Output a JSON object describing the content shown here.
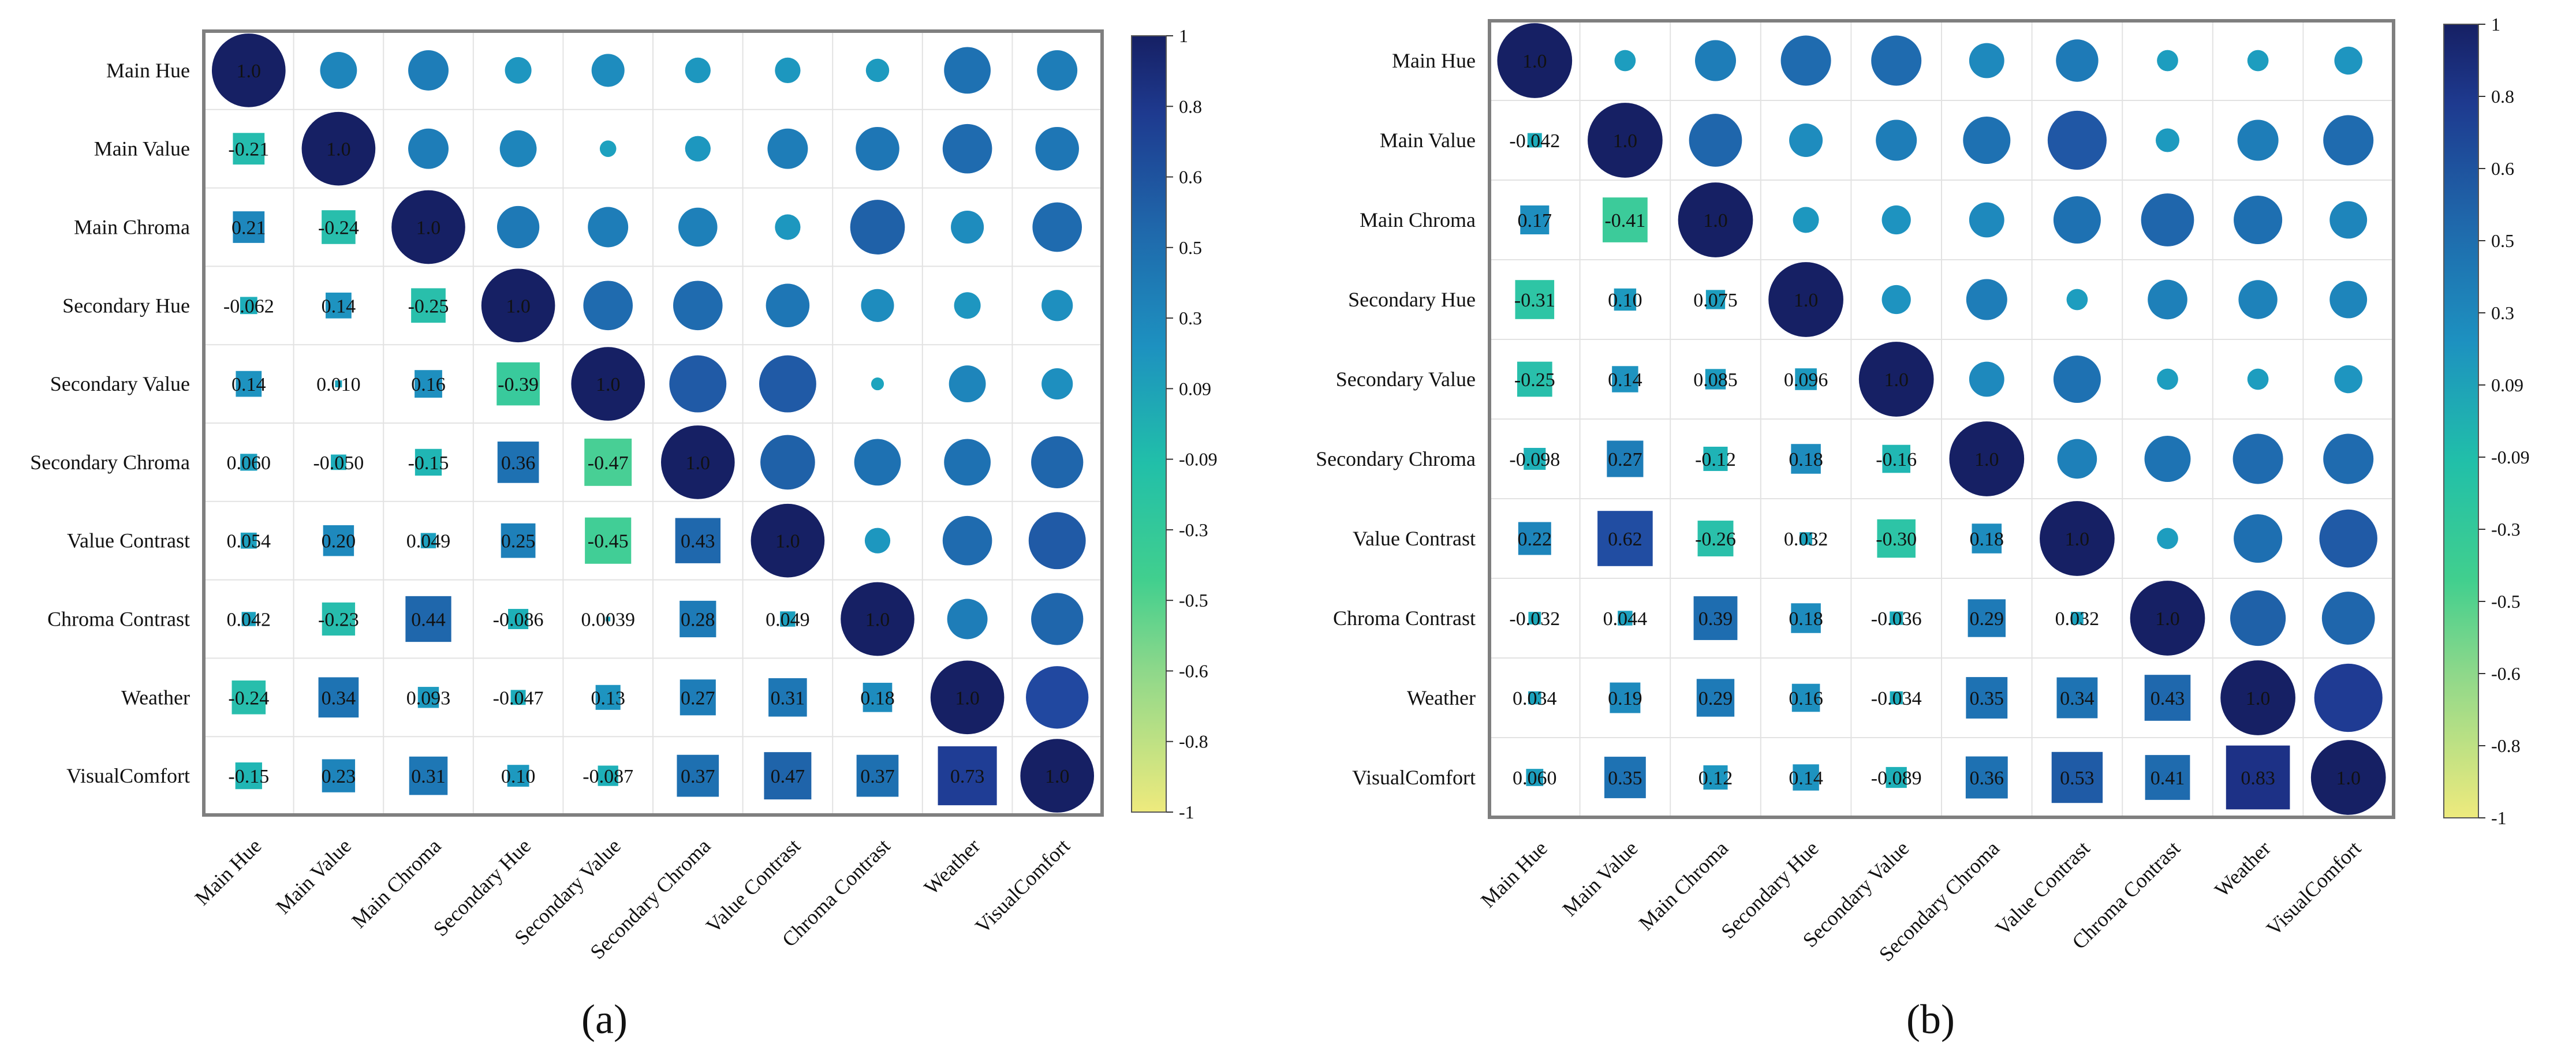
{
  "chart_data": [
    {
      "type": "heatmap",
      "panel_label": "(a)",
      "title": "",
      "variables": [
        "Main Hue",
        "Main Value",
        "Main Chroma",
        "Secondary Hue",
        "Secondary Value",
        "Secondary Chroma",
        "Value Contrast",
        "Chroma Contrast",
        "Weather",
        "VisualComfort"
      ],
      "lower_labels": [
        [
          "1.0"
        ],
        [
          "-0.21",
          "1.0"
        ],
        [
          "0.21",
          "-0.24",
          "1.0"
        ],
        [
          "-0.062",
          "0.14",
          "-0.25",
          "1.0"
        ],
        [
          "0.14",
          "0.010",
          "0.16",
          "-0.39",
          "1.0"
        ],
        [
          "0.060",
          "-0.050",
          "-0.15",
          "0.36",
          "-0.47",
          "1.0"
        ],
        [
          "0.054",
          "0.20",
          "0.049",
          "0.25",
          "-0.45",
          "0.43",
          "1.0"
        ],
        [
          "0.042",
          "-0.23",
          "0.44",
          "-0.086",
          "0.0039",
          "0.28",
          "0.049",
          "1.0"
        ],
        [
          "-0.24",
          "0.34",
          "0.093",
          "-0.047",
          "0.13",
          "0.27",
          "0.31",
          "0.18",
          "1.0"
        ],
        [
          "-0.15",
          "0.23",
          "0.31",
          "0.10",
          "-0.087",
          "0.37",
          "0.47",
          "0.37",
          "0.73",
          "1.0"
        ]
      ],
      "colorbar": {
        "ticks": [
          "1",
          "0.8",
          "0.6",
          "0.5",
          "0.3",
          "0.09",
          "-0.09",
          "-0.3",
          "-0.5",
          "-0.6",
          "-0.8",
          "-1"
        ],
        "range": [
          -1,
          1
        ]
      }
    },
    {
      "type": "heatmap",
      "panel_label": "(b)",
      "title": "",
      "variables": [
        "Main Hue",
        "Main Value",
        "Main Chroma",
        "Secondary Hue",
        "Secondary Value",
        "Secondary Chroma",
        "Value Contrast",
        "Chroma Contrast",
        "Weather",
        "VisualComfort"
      ],
      "lower_labels": [
        [
          "1.0"
        ],
        [
          "-0.042",
          "1.0"
        ],
        [
          "0.17",
          "-0.41",
          "1.0"
        ],
        [
          "-0.31",
          "0.10",
          "0.075",
          "1.0"
        ],
        [
          "-0.25",
          "0.14",
          "0.085",
          "0.096",
          "1.0"
        ],
        [
          "-0.098",
          "0.27",
          "-0.12",
          "0.18",
          "-0.16",
          "1.0"
        ],
        [
          "0.22",
          "0.62",
          "-0.26",
          "0.032",
          "-0.30",
          "0.18",
          "1.0"
        ],
        [
          "-0.032",
          "0.044",
          "0.39",
          "0.18",
          "-0.036",
          "0.29",
          "0.032",
          "1.0"
        ],
        [
          "0.034",
          "0.19",
          "0.29",
          "0.16",
          "-0.034",
          "0.35",
          "0.34",
          "0.43",
          "1.0"
        ],
        [
          "0.060",
          "0.35",
          "0.12",
          "0.14",
          "-0.089",
          "0.36",
          "0.53",
          "0.41",
          "0.83",
          "1.0"
        ]
      ],
      "colorbar": {
        "ticks": [
          "1",
          "0.8",
          "0.6",
          "0.5",
          "0.3",
          "0.09",
          "-0.09",
          "-0.3",
          "-0.5",
          "-0.6",
          "-0.8",
          "-1"
        ],
        "range": [
          -1,
          1
        ]
      }
    }
  ]
}
